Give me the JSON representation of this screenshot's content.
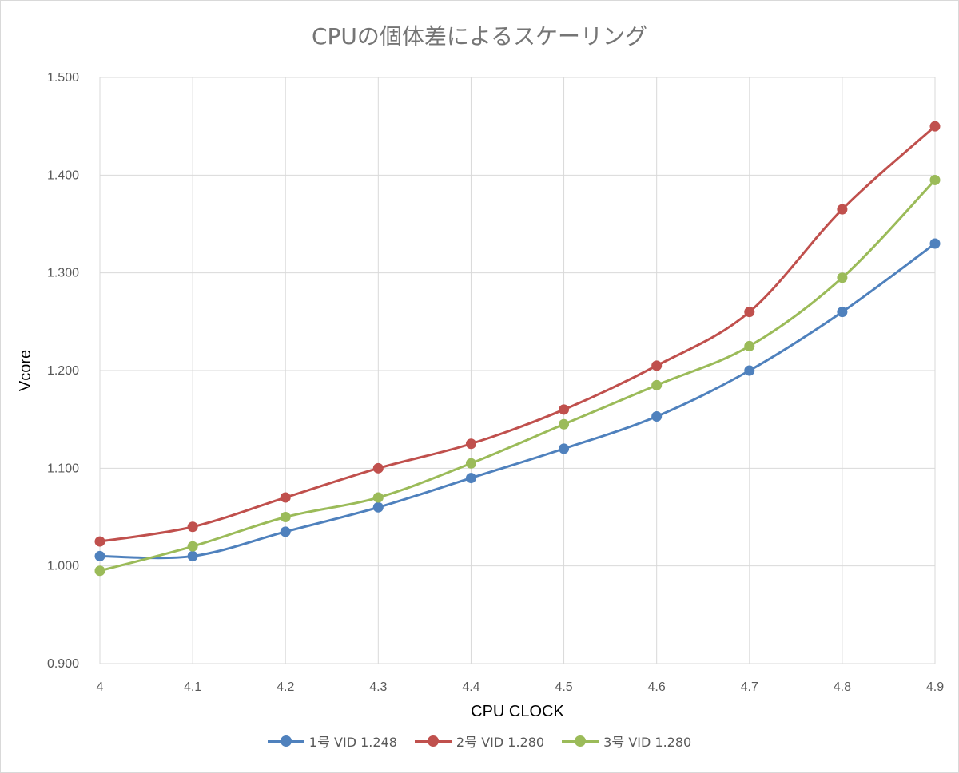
{
  "chart_data": {
    "type": "line",
    "title": "CPUの個体差によるスケーリング",
    "xlabel": "CPU CLOCK",
    "ylabel": "Vcore",
    "x": [
      4,
      4.1,
      4.2,
      4.3,
      4.4,
      4.5,
      4.6,
      4.7,
      4.8,
      4.9
    ],
    "x_tick_labels": [
      "4",
      "4.1",
      "4.2",
      "4.3",
      "4.4",
      "4.5",
      "4.6",
      "4.7",
      "4.8",
      "4.9"
    ],
    "ylim": [
      0.9,
      1.5
    ],
    "y_ticks": [
      0.9,
      1.0,
      1.1,
      1.2,
      1.3,
      1.4,
      1.5
    ],
    "y_tick_labels": [
      "0.900",
      "1.000",
      "1.100",
      "1.200",
      "1.300",
      "1.400",
      "1.500"
    ],
    "grid": true,
    "smooth": true,
    "legend_position": "bottom",
    "series": [
      {
        "name": "1号 VID 1.248",
        "color": "#4F81BD",
        "values": [
          1.01,
          1.01,
          1.035,
          1.06,
          1.09,
          1.12,
          1.153,
          1.2,
          1.26,
          1.33
        ]
      },
      {
        "name": "2号 VID 1.280",
        "color": "#C0504D",
        "values": [
          1.025,
          1.04,
          1.07,
          1.1,
          1.125,
          1.16,
          1.205,
          1.26,
          1.365,
          1.45
        ]
      },
      {
        "name": "3号 VID 1.280",
        "color": "#9BBB59",
        "values": [
          0.995,
          1.02,
          1.05,
          1.07,
          1.105,
          1.145,
          1.185,
          1.225,
          1.295,
          1.395
        ]
      }
    ]
  }
}
